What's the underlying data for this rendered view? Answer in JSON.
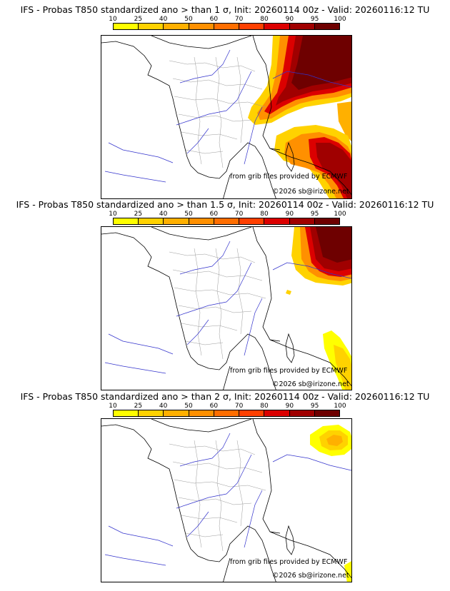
{
  "colorbar": {
    "ticks": [
      "10",
      "25",
      "40",
      "50",
      "60",
      "70",
      "80",
      "90",
      "95",
      "100"
    ],
    "colors": [
      "#ffff00",
      "#ffd200",
      "#ffb000",
      "#ff9000",
      "#ff6e00",
      "#ff4000",
      "#dc0000",
      "#a00000",
      "#6e0000"
    ]
  },
  "panels": [
    {
      "title": "IFS - Probas T850  standardized ano > than 1 σ, Init: 20260114 00z - Valid: 20260116:12 TU",
      "source_credit": "from grib files provided by ECMWF",
      "copyright": "©2026 sb@irizone.net"
    },
    {
      "title": "IFS - Probas T850  standardized ano > than 1.5 σ, Init: 20260114 00z - Valid: 20260116:12 TU",
      "source_credit": "from grib files provided by ECMWF",
      "copyright": "©2026 sb@irizone.net"
    },
    {
      "title": "IFS - Probas T850  standardized ano > than 2 σ, Init: 20260114 00z - Valid: 20260116:12 TU",
      "source_credit": "from grib files provided by ECMWF",
      "copyright": "©2026 sb@irizone.net"
    }
  ]
}
